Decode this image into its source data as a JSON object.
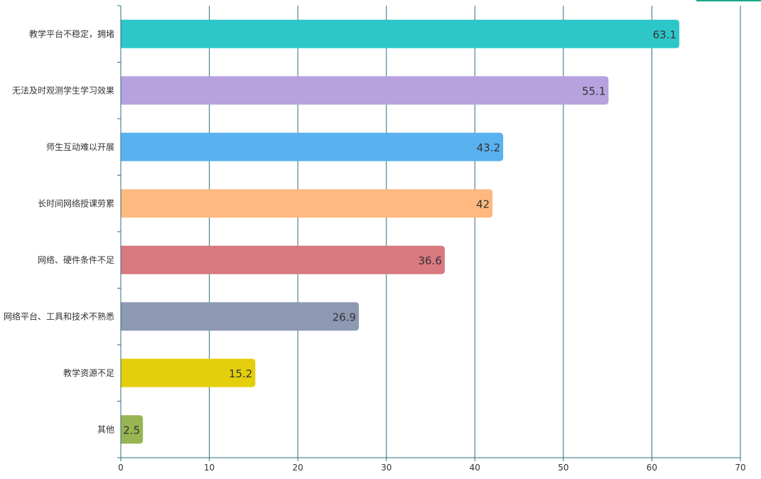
{
  "chart_data": {
    "type": "bar",
    "orientation": "horizontal",
    "categories": [
      "教学平台不稳定，拥堵",
      "无法及时观测学生学习效果",
      "师生互动难以开展",
      "长时间网络授课劳累",
      "网络、硬件条件不足",
      "网络平台、工具和技术不熟悉",
      "教学资源不足",
      "其他"
    ],
    "values": [
      63.1,
      55.1,
      43.2,
      42,
      36.6,
      26.9,
      15.2,
      2.5
    ],
    "value_labels": [
      "63.1",
      "55.1",
      "43.2",
      "42",
      "36.6",
      "26.9",
      "15.2",
      "2.5"
    ],
    "colors": [
      "#2ec7c9",
      "#b6a2de",
      "#5ab1ef",
      "#ffb980",
      "#d87a80",
      "#8d98b3",
      "#e5cf0d",
      "#97b552"
    ],
    "xlim": [
      0,
      70
    ],
    "x_ticks": [
      "0",
      "10",
      "20",
      "30",
      "40",
      "50",
      "60",
      "70"
    ],
    "title": "",
    "xlabel": "",
    "ylabel": "",
    "grid": true,
    "axis_color": "#2f6e80"
  }
}
